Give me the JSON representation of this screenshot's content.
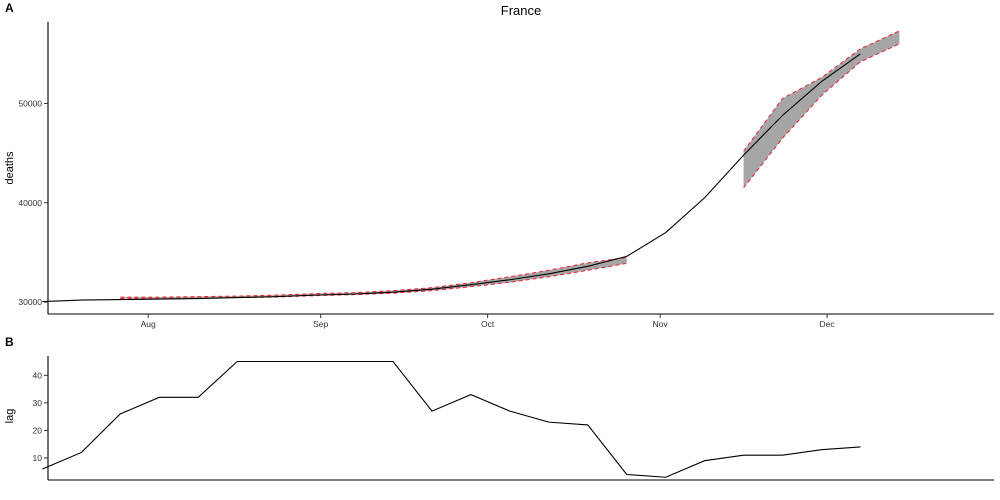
{
  "chart_data": [
    {
      "panel": "A",
      "type": "line",
      "title": "France",
      "xlabel": "",
      "ylabel": "deaths",
      "x_ticks": [
        {
          "date": "2020-08-01",
          "label": "Aug"
        },
        {
          "date": "2020-09-01",
          "label": "Sep"
        },
        {
          "date": "2020-10-01",
          "label": "Oct"
        },
        {
          "date": "2020-11-01",
          "label": "Nov"
        },
        {
          "date": "2020-12-01",
          "label": "Dec"
        }
      ],
      "y_ticks": [
        30000,
        40000,
        50000
      ],
      "xlim": [
        "2020-07-14",
        "2020-12-31"
      ],
      "ylim": [
        28800,
        58200
      ],
      "grid": false,
      "observed": {
        "x": [
          "2020-07-13",
          "2020-07-20",
          "2020-07-27",
          "2020-08-03",
          "2020-08-10",
          "2020-08-17",
          "2020-08-24",
          "2020-08-31",
          "2020-09-07",
          "2020-09-14",
          "2020-09-21",
          "2020-09-28",
          "2020-10-05",
          "2020-10-12",
          "2020-10-19",
          "2020-10-26",
          "2020-11-02",
          "2020-11-09",
          "2020-11-16",
          "2020-11-23",
          "2020-11-30",
          "2020-12-07"
        ],
        "y": [
          30050,
          30200,
          30250,
          30300,
          30350,
          30450,
          30550,
          30700,
          30800,
          31000,
          31300,
          31750,
          32250,
          32850,
          33600,
          34600,
          37000,
          40500,
          44800,
          48800,
          52200,
          55000
        ]
      },
      "forecast_bands": [
        {
          "x": [
            "2020-07-27",
            "2020-08-03",
            "2020-08-10",
            "2020-08-17",
            "2020-08-24",
            "2020-08-31",
            "2020-09-07",
            "2020-09-14",
            "2020-09-21",
            "2020-09-28",
            "2020-10-05",
            "2020-10-12",
            "2020-10-19",
            "2020-10-26"
          ],
          "lower": [
            30350,
            30350,
            30400,
            30450,
            30500,
            30650,
            30750,
            30900,
            31150,
            31550,
            32000,
            32550,
            33200,
            33900
          ],
          "upper": [
            30500,
            30500,
            30550,
            30600,
            30700,
            30850,
            30950,
            31150,
            31450,
            31950,
            32550,
            33200,
            33950,
            34500
          ]
        },
        {
          "x": [
            "2020-11-16",
            "2020-11-23",
            "2020-11-30",
            "2020-12-07",
            "2020-12-14"
          ],
          "lower": [
            41500,
            46500,
            50800,
            54200,
            56000
          ],
          "upper": [
            45200,
            50500,
            52600,
            55500,
            57300
          ]
        }
      ]
    },
    {
      "panel": "B",
      "type": "line",
      "title": "",
      "xlabel": "",
      "ylabel": "lag",
      "y_ticks": [
        10,
        20,
        30,
        40
      ],
      "ylim": [
        2,
        47
      ],
      "xlim": [
        "2020-07-14",
        "2020-12-31"
      ],
      "grid": false,
      "series": {
        "x": [
          "2020-07-13",
          "2020-07-20",
          "2020-07-27",
          "2020-08-03",
          "2020-08-10",
          "2020-08-17",
          "2020-08-24",
          "2020-08-31",
          "2020-09-07",
          "2020-09-14",
          "2020-09-21",
          "2020-09-28",
          "2020-10-05",
          "2020-10-12",
          "2020-10-19",
          "2020-10-26",
          "2020-11-02",
          "2020-11-09",
          "2020-11-16",
          "2020-11-23",
          "2020-11-30",
          "2020-12-07"
        ],
        "y": [
          6,
          12,
          26,
          32,
          32,
          45,
          45,
          45,
          45,
          45,
          27,
          33,
          27,
          23,
          22,
          4,
          3,
          9,
          11,
          11,
          13,
          14
        ]
      }
    }
  ],
  "colors": {
    "line": "#000000",
    "band_fill": "#a6a6a6",
    "band_edge": "#e8202a"
  }
}
